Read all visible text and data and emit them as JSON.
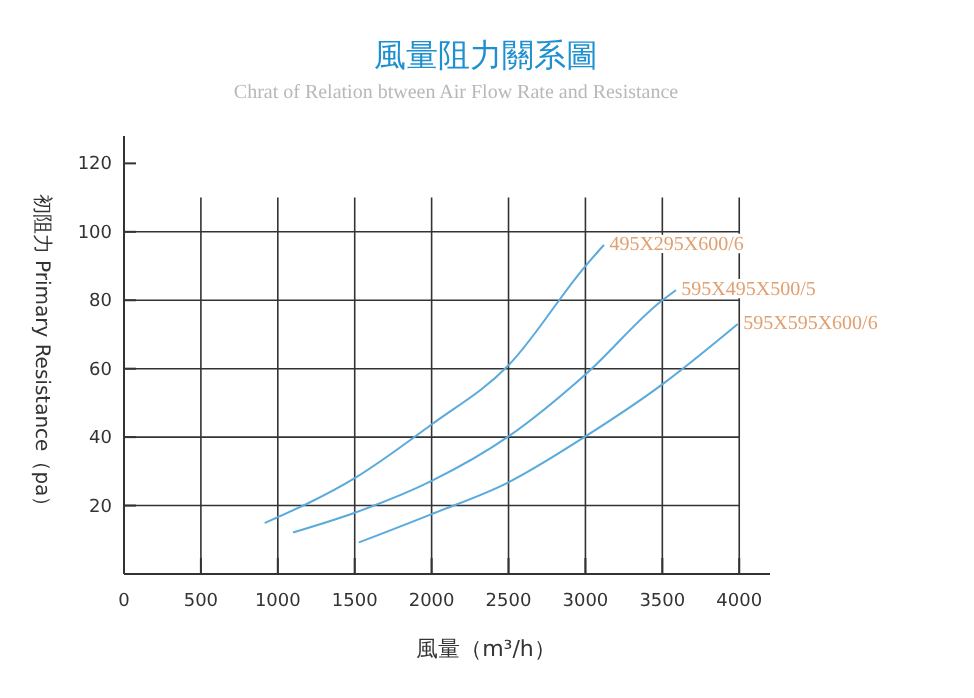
{
  "chart_data": {
    "type": "line",
    "title": "風量阻力關系圖",
    "subtitle": "Chrat of Relation btween Air Flow Rate and Resistance",
    "xlabel": "風量（m³/h）",
    "ylabel": "初阻力 Primary Resistance（pa）",
    "xlim": [
      0,
      4200
    ],
    "xticks": [
      0,
      500,
      1000,
      1500,
      2000,
      2500,
      3000,
      3500,
      4000
    ],
    "ylim": [
      0,
      128
    ],
    "yticks": [
      20,
      40,
      60,
      80,
      100,
      120
    ],
    "grid": true,
    "legend": false,
    "marker": "none",
    "line_style": "solid",
    "series": [
      {
        "name": "495X295X600/6",
        "color": "#5aaadd",
        "x": [
          920,
          1500,
          2000,
          2500,
          3000,
          3117
        ],
        "values": [
          15,
          28,
          43.7,
          61,
          90,
          96
        ]
      },
      {
        "name": "595X495X500/5",
        "color": "#5aaadd",
        "x": [
          1104,
          1500,
          2000,
          2500,
          3000,
          3500,
          3584
        ],
        "values": [
          12.2,
          17.9,
          27.2,
          40.2,
          58.3,
          80,
          82.8
        ]
      },
      {
        "name": "595X595X600/6",
        "color": "#5aaadd",
        "x": [
          1532,
          2000,
          2500,
          3000,
          3500,
          3987
        ],
        "values": [
          9.3,
          17.5,
          26.8,
          40.2,
          55.4,
          72.9
        ]
      }
    ]
  }
}
